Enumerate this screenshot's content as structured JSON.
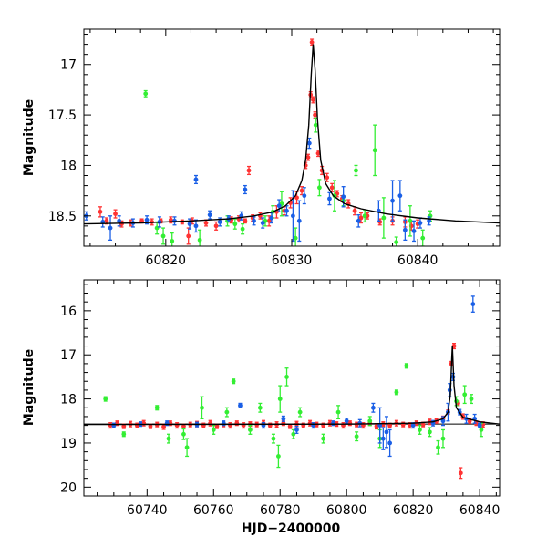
{
  "colors": {
    "red": "#ff3333",
    "green": "#33ee33",
    "blue": "#1a5fe6",
    "model": "#000000"
  },
  "chart_data": [
    {
      "type": "scatter",
      "panel": "top",
      "title": "",
      "xlabel": "",
      "ylabel": "Magnitude",
      "xlim": [
        60813.5,
        60846.5
      ],
      "ylim": [
        18.8,
        16.65
      ],
      "y_inverted": true,
      "xticks": [
        60820,
        60830,
        60840
      ],
      "yticks": [
        17,
        17.5,
        18,
        18.5
      ],
      "grid": false,
      "legend": "none",
      "model_curve": {
        "x": [
          60813.5,
          60818,
          60822,
          60825,
          60827,
          60828.5,
          60829.5,
          60830.3,
          60830.8,
          60831.1,
          60831.35,
          60831.55,
          60831.7,
          60831.85,
          60832.05,
          60832.3,
          60832.7,
          60833.3,
          60834.2,
          60835.5,
          60837.5,
          60840,
          60843,
          60846.5
        ],
        "y": [
          18.58,
          18.57,
          18.55,
          18.53,
          18.5,
          18.46,
          18.4,
          18.3,
          18.15,
          17.95,
          17.6,
          17.1,
          16.8,
          17.05,
          17.55,
          17.95,
          18.18,
          18.3,
          18.38,
          18.43,
          18.48,
          18.52,
          18.55,
          18.57
        ]
      },
      "series": [
        {
          "color": "red",
          "x": [
            60814.8,
            60815.3,
            60816.5,
            60817.2,
            60818.1,
            60818.9,
            60819.6,
            60820.4,
            60821.3,
            60822.1,
            60823.2,
            60824.0,
            60825.2,
            60825.8,
            60826.3,
            60826.9,
            60827.5,
            60828.2,
            60828.8,
            60829.4,
            60829.9,
            60830.4,
            60830.8,
            60831.1,
            60831.3,
            60831.5,
            60831.6,
            60831.7,
            60831.85,
            60832.1,
            60832.4,
            60832.8,
            60833.2,
            60833.6,
            60834.0,
            60834.5,
            60835.0,
            60836.0,
            60837.0,
            60838.0,
            60839.0,
            60839.5,
            60840.0,
            60816.0,
            60821.8,
            60826.6,
            60835.5
          ],
          "y": [
            18.46,
            18.55,
            18.58,
            18.57,
            18.55,
            18.56,
            18.55,
            18.54,
            18.56,
            18.55,
            18.57,
            18.6,
            18.54,
            18.53,
            18.55,
            18.52,
            18.5,
            18.55,
            18.46,
            18.45,
            18.37,
            18.32,
            18.25,
            18.0,
            17.92,
            17.3,
            16.78,
            17.35,
            17.5,
            17.88,
            18.05,
            18.12,
            18.22,
            18.28,
            18.33,
            18.38,
            18.45,
            18.5,
            18.56,
            18.55,
            18.56,
            18.6,
            18.58,
            18.48,
            18.7,
            18.05,
            18.52
          ],
          "err": [
            0.05,
            0.03,
            0.03,
            0.03,
            0.02,
            0.03,
            0.02,
            0.03,
            0.02,
            0.03,
            0.03,
            0.04,
            0.03,
            0.03,
            0.02,
            0.03,
            0.03,
            0.05,
            0.06,
            0.04,
            0.05,
            0.06,
            0.04,
            0.03,
            0.03,
            0.03,
            0.03,
            0.03,
            0.03,
            0.03,
            0.04,
            0.04,
            0.04,
            0.03,
            0.03,
            0.04,
            0.04,
            0.03,
            0.03,
            0.04,
            0.05,
            0.04,
            0.04,
            0.04,
            0.08,
            0.04,
            0.05
          ]
        },
        {
          "color": "green",
          "x": [
            60818.4,
            60819.3,
            60820.5,
            60822.7,
            60824.9,
            60826.1,
            60827.9,
            60828.5,
            60829.2,
            60830.3,
            60831.9,
            60832.2,
            60833.4,
            60834.1,
            60835.1,
            60835.8,
            60836.6,
            60837.3,
            60838.3,
            60839.4,
            60840.4,
            60841.0,
            60819.8,
            60825.5
          ],
          "y": [
            17.29,
            18.62,
            18.75,
            18.74,
            18.55,
            18.63,
            18.55,
            18.46,
            18.38,
            18.72,
            17.6,
            18.22,
            18.3,
            18.35,
            18.05,
            18.5,
            17.85,
            18.52,
            18.76,
            18.55,
            18.72,
            18.5,
            18.7,
            18.58
          ],
          "err": [
            0.03,
            0.06,
            0.08,
            0.1,
            0.05,
            0.05,
            0.05,
            0.06,
            0.12,
            0.1,
            0.07,
            0.08,
            0.15,
            0.05,
            0.05,
            0.06,
            0.25,
            0.2,
            0.05,
            0.15,
            0.08,
            0.05,
            0.08,
            0.05
          ]
        },
        {
          "color": "blue",
          "x": [
            60813.7,
            60815.0,
            60815.6,
            60816.3,
            60817.4,
            60818.5,
            60819.5,
            60820.7,
            60821.9,
            60822.4,
            60823.5,
            60824.3,
            60825.0,
            60826.0,
            60827.0,
            60827.7,
            60828.4,
            60829.0,
            60829.6,
            60830.1,
            60830.6,
            60831.0,
            60831.4,
            60833.0,
            60834.1,
            60835.3,
            60836.9,
            60838.0,
            60838.6,
            60839.0,
            60839.7,
            60840.2,
            60840.9,
            60826.3,
            60822.4
          ],
          "y": [
            18.5,
            18.56,
            18.62,
            18.55,
            18.57,
            18.54,
            18.56,
            18.55,
            18.58,
            18.6,
            18.49,
            18.56,
            18.53,
            18.5,
            18.55,
            18.57,
            18.52,
            18.4,
            18.45,
            18.5,
            18.55,
            18.3,
            17.78,
            18.33,
            18.31,
            18.55,
            18.45,
            18.35,
            18.3,
            18.64,
            18.65,
            18.57,
            18.55,
            18.24,
            18.14
          ],
          "err": [
            0.04,
            0.05,
            0.12,
            0.05,
            0.04,
            0.04,
            0.05,
            0.04,
            0.05,
            0.06,
            0.04,
            0.04,
            0.03,
            0.04,
            0.04,
            0.05,
            0.05,
            0.06,
            0.05,
            0.25,
            0.2,
            0.08,
            0.05,
            0.06,
            0.1,
            0.06,
            0.1,
            0.2,
            0.15,
            0.1,
            0.1,
            0.05,
            0.04,
            0.04,
            0.04
          ]
        }
      ]
    },
    {
      "type": "scatter",
      "panel": "bottom",
      "title": "",
      "xlabel": "HJD−2400000",
      "ylabel": "Magnitude",
      "xlim": [
        60721,
        60846
      ],
      "ylim": [
        20.2,
        15.3
      ],
      "y_inverted": true,
      "xticks": [
        60740,
        60760,
        60780,
        60800,
        60820,
        60840
      ],
      "yticks": [
        16,
        17,
        18,
        19,
        20
      ],
      "grid": false,
      "legend": "none",
      "baseline_mag": 18.57,
      "model_curve": {
        "x": [
          60721,
          60800,
          60820,
          60826,
          60829,
          60830.5,
          60831.2,
          60831.6,
          60831.8,
          60832.3,
          60833,
          60835,
          60840,
          60846
        ],
        "y": [
          18.58,
          18.57,
          18.55,
          18.52,
          18.45,
          18.3,
          17.9,
          17.1,
          16.8,
          17.7,
          18.2,
          18.42,
          18.52,
          18.57
        ]
      },
      "series": [
        {
          "color": "red",
          "x": [
            60729,
            60731,
            60733,
            60735,
            60737,
            60739,
            60741,
            60743,
            60745,
            60747,
            60749,
            60751,
            60753,
            60755,
            60757,
            60759,
            60761,
            60763,
            60765,
            60767,
            60769,
            60771,
            60773,
            60775,
            60777,
            60779,
            60781,
            60783,
            60785,
            60787,
            60789,
            60791,
            60793,
            60795,
            60797,
            60799,
            60801,
            60803,
            60805,
            60807,
            60809,
            60811,
            60813,
            60815,
            60817,
            60819,
            60821,
            60823,
            60825,
            60827,
            60829,
            60830.5,
            60831.5,
            60832.3,
            60833.5,
            60835,
            60837,
            60839,
            60841,
            60834.3
          ],
          "y": [
            18.6,
            18.55,
            18.62,
            18.57,
            18.6,
            18.55,
            18.62,
            18.58,
            18.63,
            18.55,
            18.6,
            18.62,
            18.58,
            18.57,
            18.6,
            18.55,
            18.62,
            18.58,
            18.6,
            18.55,
            18.6,
            18.57,
            18.58,
            18.55,
            18.6,
            18.58,
            18.55,
            18.62,
            18.57,
            18.6,
            18.55,
            18.58,
            18.6,
            18.55,
            18.57,
            18.6,
            18.55,
            18.58,
            18.6,
            18.55,
            18.62,
            18.57,
            18.6,
            18.55,
            18.58,
            18.6,
            18.55,
            18.58,
            18.52,
            18.5,
            18.45,
            18.3,
            17.2,
            16.8,
            18.1,
            18.4,
            18.5,
            18.55,
            18.58,
            19.68
          ],
          "err": [
            0.06,
            0.05,
            0.05,
            0.06,
            0.05,
            0.06,
            0.05,
            0.05,
            0.06,
            0.05,
            0.06,
            0.05,
            0.05,
            0.06,
            0.05,
            0.06,
            0.05,
            0.05,
            0.06,
            0.05,
            0.06,
            0.05,
            0.05,
            0.06,
            0.05,
            0.06,
            0.05,
            0.05,
            0.06,
            0.05,
            0.06,
            0.05,
            0.05,
            0.06,
            0.05,
            0.06,
            0.05,
            0.05,
            0.06,
            0.05,
            0.06,
            0.05,
            0.05,
            0.06,
            0.05,
            0.06,
            0.05,
            0.05,
            0.06,
            0.05,
            0.06,
            0.05,
            0.05,
            0.06,
            0.05,
            0.06,
            0.05,
            0.05,
            0.06,
            0.12
          ]
        },
        {
          "color": "green",
          "x": [
            60727.5,
            60733,
            60743,
            60746.5,
            60751,
            60752,
            60756.5,
            60760,
            60764,
            60766,
            60771,
            60774,
            60778,
            60779.5,
            60780,
            60782,
            60784,
            60786,
            60793,
            60797.5,
            60803,
            60807,
            60810,
            60815,
            60818,
            60822,
            60825,
            60827.5,
            60829,
            60833,
            60835.5,
            60837.5,
            60840.5
          ],
          "y": [
            18.0,
            18.8,
            18.2,
            18.9,
            18.8,
            19.1,
            18.2,
            18.7,
            18.3,
            17.6,
            18.7,
            18.2,
            18.9,
            19.3,
            18.0,
            17.5,
            18.8,
            18.3,
            18.9,
            18.3,
            18.85,
            18.5,
            18.9,
            17.85,
            17.25,
            18.7,
            18.75,
            19.1,
            18.9,
            18.05,
            17.9,
            18.0,
            18.7
          ],
          "err": [
            0.05,
            0.05,
            0.05,
            0.1,
            0.12,
            0.2,
            0.25,
            0.1,
            0.1,
            0.05,
            0.1,
            0.1,
            0.1,
            0.25,
            0.3,
            0.2,
            0.1,
            0.1,
            0.1,
            0.15,
            0.1,
            0.1,
            0.2,
            0.05,
            0.05,
            0.1,
            0.1,
            0.15,
            0.2,
            0.1,
            0.2,
            0.1,
            0.15
          ]
        },
        {
          "color": "blue",
          "x": [
            60730,
            60738,
            60746,
            60755,
            60763,
            60768,
            60775,
            60781,
            60785,
            60790,
            60796,
            60800,
            60804,
            60808,
            60810,
            60811,
            60812,
            60813,
            60820,
            60826,
            60829,
            60830.5,
            60831,
            60832,
            60834,
            60836,
            60838,
            60838.5,
            60840
          ],
          "y": [
            18.6,
            18.57,
            18.55,
            18.58,
            18.55,
            18.15,
            18.6,
            18.45,
            18.7,
            18.6,
            18.55,
            18.5,
            18.55,
            18.2,
            18.6,
            18.9,
            18.75,
            19.0,
            18.6,
            18.55,
            18.5,
            18.3,
            17.8,
            17.5,
            18.3,
            18.45,
            15.85,
            18.45,
            18.6
          ],
          "err": [
            0.05,
            0.05,
            0.05,
            0.05,
            0.05,
            0.05,
            0.06,
            0.06,
            0.08,
            0.06,
            0.05,
            0.06,
            0.08,
            0.1,
            0.4,
            0.25,
            0.35,
            0.3,
            0.06,
            0.06,
            0.1,
            0.2,
            0.15,
            0.08,
            0.06,
            0.1,
            0.18,
            0.1,
            0.05
          ]
        }
      ]
    }
  ]
}
